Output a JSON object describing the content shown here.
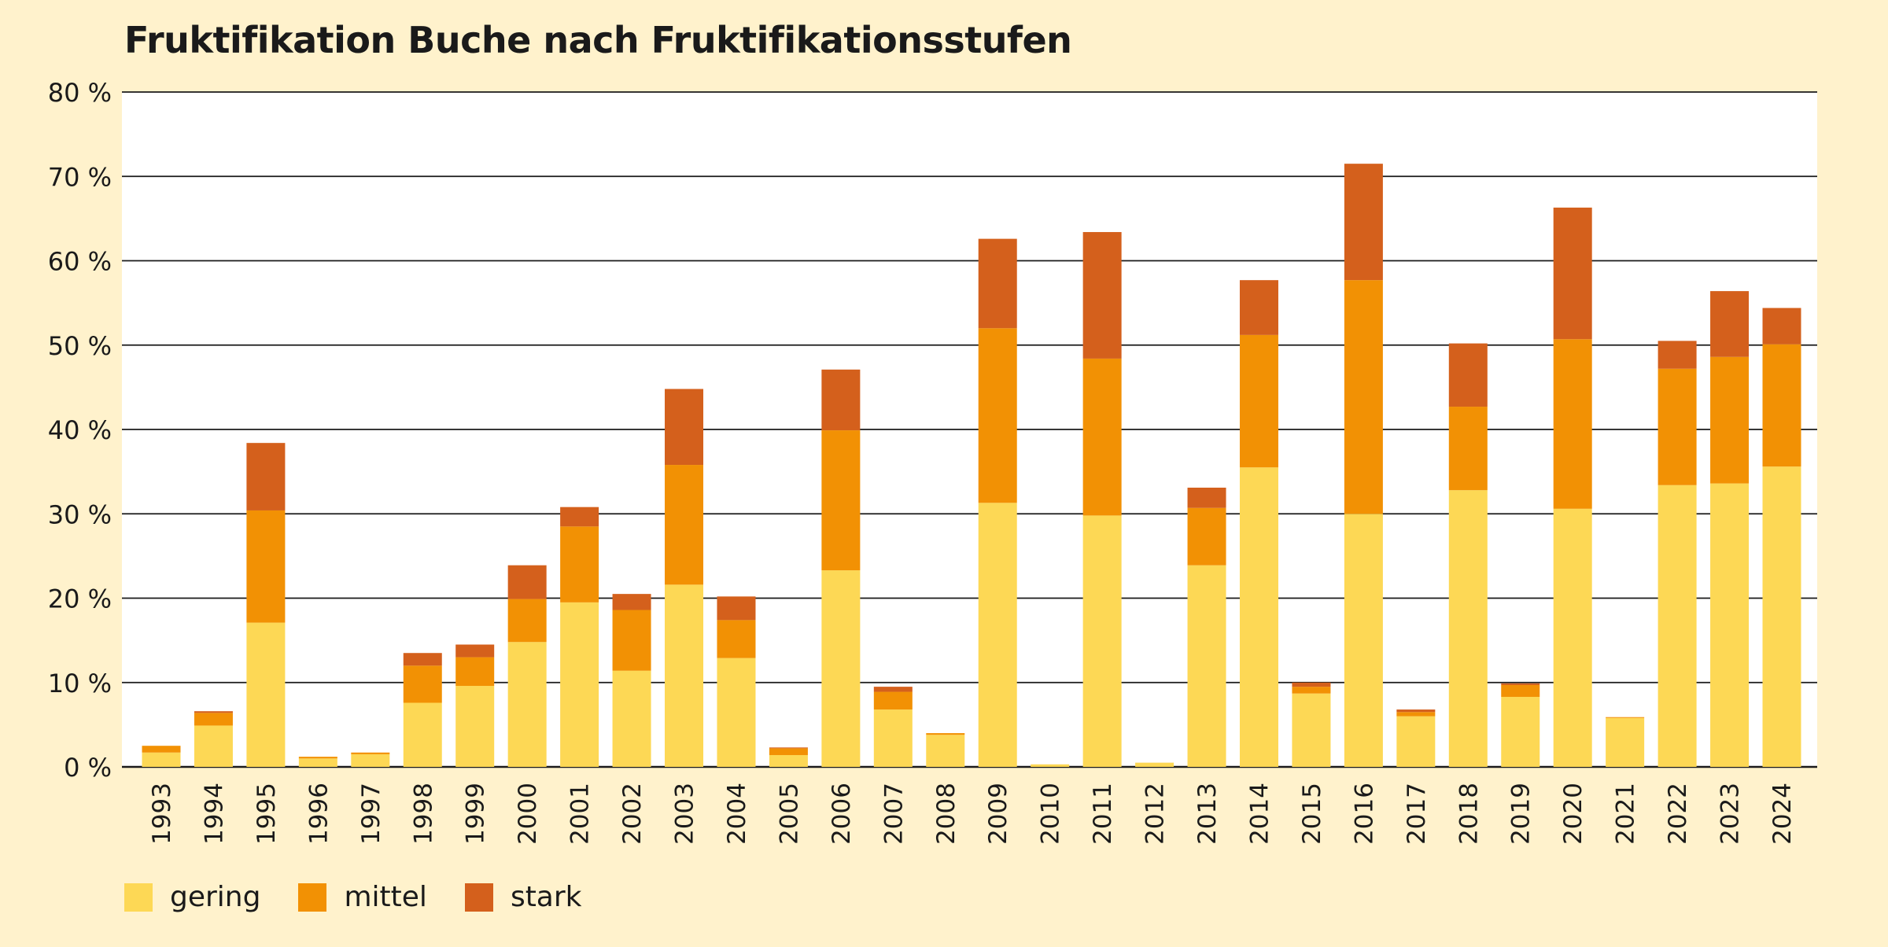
{
  "chart_data": {
    "type": "bar",
    "stacked": true,
    "title": "Fruktifikation Buche nach Fruktifikationsstufen",
    "xlabel": "",
    "ylabel": "",
    "ylim": [
      0,
      80
    ],
    "yticks": [
      "0 %",
      "10 %",
      "20 %",
      "30 %",
      "40 %",
      "50 %",
      "60 %",
      "70 %",
      "80 %"
    ],
    "grid": true,
    "legend_position": "bottom-left",
    "categories": [
      "1993",
      "1994",
      "1995",
      "1996",
      "1997",
      "1998",
      "1999",
      "2000",
      "2001",
      "2002",
      "2003",
      "2004",
      "2005",
      "2006",
      "2007",
      "2008",
      "2009",
      "2010",
      "2011",
      "2012",
      "2013",
      "2014",
      "2015",
      "2016",
      "2017",
      "2018",
      "2019",
      "2020",
      "2021",
      "2022",
      "2023",
      "2024"
    ],
    "series": [
      {
        "name": "gering",
        "color": "#fdd855",
        "values": [
          1.7,
          4.9,
          17.1,
          1.0,
          1.5,
          7.6,
          9.6,
          14.8,
          19.5,
          11.4,
          21.6,
          12.9,
          1.4,
          23.3,
          6.8,
          3.8,
          31.3,
          0.3,
          29.8,
          0.5,
          23.9,
          35.5,
          8.7,
          30.0,
          6.0,
          32.8,
          8.3,
          30.6,
          5.8,
          33.4,
          33.6,
          35.6
        ]
      },
      {
        "name": "mittel",
        "color": "#f29104",
        "values": [
          0.8,
          1.5,
          13.3,
          0.2,
          0.2,
          4.4,
          3.4,
          5.1,
          9.0,
          7.2,
          14.2,
          4.5,
          0.8,
          16.6,
          2.1,
          0.2,
          20.7,
          0.0,
          18.6,
          0.0,
          6.8,
          15.7,
          0.8,
          27.7,
          0.5,
          9.9,
          1.4,
          20.1,
          0.1,
          13.8,
          15.0,
          14.5
        ]
      },
      {
        "name": "stark",
        "color": "#d4601c",
        "values": [
          0.0,
          0.2,
          8.0,
          0.0,
          0.0,
          1.5,
          1.5,
          4.0,
          2.3,
          1.9,
          9.0,
          2.8,
          0.1,
          7.2,
          0.6,
          0.0,
          10.6,
          0.0,
          15.0,
          0.0,
          2.4,
          6.5,
          0.5,
          13.8,
          0.3,
          7.5,
          0.2,
          15.6,
          0.0,
          3.3,
          7.8,
          4.3
        ]
      }
    ]
  }
}
